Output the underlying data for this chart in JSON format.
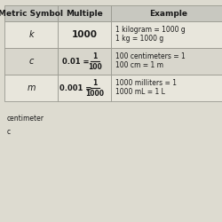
{
  "title_row": [
    "Metric Symbol",
    "Multiple",
    "Example"
  ],
  "rows": [
    {
      "symbol": "k",
      "multiple_main": "1000",
      "multiple_num": null,
      "multiple_den": null,
      "example_line1": "1 kilogram = 1000 g",
      "example_line2": "1 kg = 1000 g"
    },
    {
      "symbol": "c",
      "multiple_main": "0.01 =",
      "multiple_num": "1",
      "multiple_den": "100",
      "example_line1": "100 centimeters = 1",
      "example_line2": "100 cm = 1 m"
    },
    {
      "symbol": "m",
      "multiple_main": "0.001 =",
      "multiple_num": "1",
      "multiple_den": "1000",
      "example_line1": "1000 milliters = 1",
      "example_line2": "1000 mL = 1 L"
    }
  ],
  "footer_lines": [
    "centimeter",
    "c"
  ],
  "header_bg": "#c8c8c0",
  "row_bg_light": "#e8e6dc",
  "row_bg_dark": "#d8d6cc",
  "border_color": "#999990",
  "text_color": "#1a1a1a",
  "header_fontsize": 6.5,
  "cell_fontsize": 6.0,
  "footer_fontsize": 5.5,
  "background_color": "#dddbd0"
}
